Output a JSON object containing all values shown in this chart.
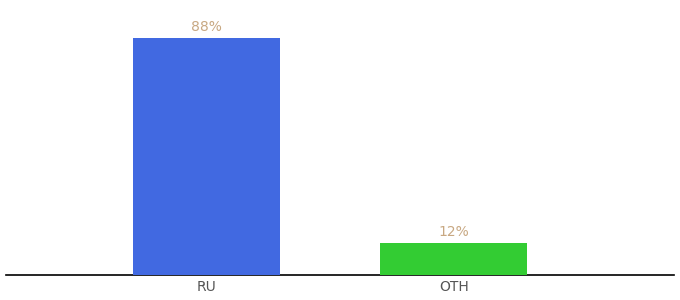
{
  "categories": [
    "RU",
    "OTH"
  ],
  "values": [
    88,
    12
  ],
  "bar_colors": [
    "#4169e1",
    "#33cc33"
  ],
  "label_texts": [
    "88%",
    "12%"
  ],
  "label_color": "#c8a882",
  "xlabel": "",
  "ylabel": "",
  "ylim": [
    0,
    100
  ],
  "background_color": "#ffffff",
  "bar_width": 0.22,
  "label_fontsize": 10,
  "tick_fontsize": 10,
  "tick_color": "#555555",
  "x_positions": [
    0.3,
    0.67
  ]
}
